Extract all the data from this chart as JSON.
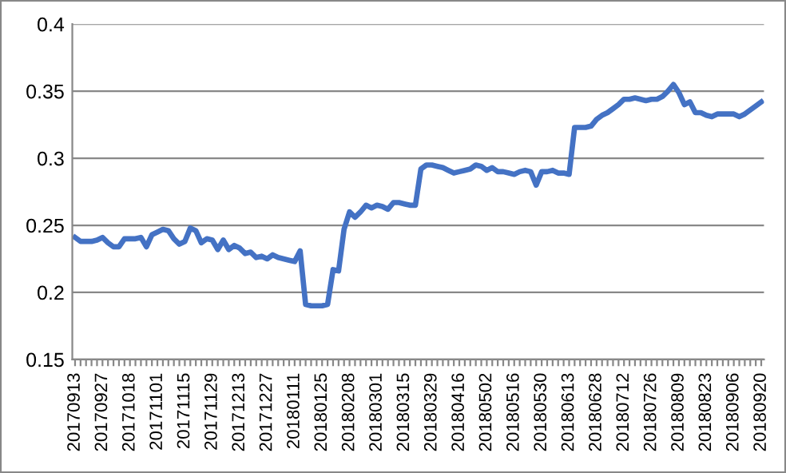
{
  "chart_data": {
    "type": "line",
    "categories": [
      "20170913",
      null,
      null,
      null,
      null,
      "20170927",
      null,
      null,
      null,
      null,
      "20171018",
      null,
      null,
      null,
      null,
      "20171101",
      null,
      null,
      null,
      null,
      "20171115",
      null,
      null,
      null,
      null,
      "20171129",
      null,
      null,
      null,
      null,
      "20171213",
      null,
      null,
      null,
      null,
      "20171227",
      null,
      null,
      null,
      null,
      "20180111",
      null,
      null,
      null,
      null,
      "20180125",
      null,
      null,
      null,
      null,
      "20180208",
      null,
      null,
      null,
      null,
      "20180301",
      null,
      null,
      null,
      null,
      "20180315",
      null,
      null,
      null,
      null,
      "20180329",
      null,
      null,
      null,
      null,
      "20180416",
      null,
      null,
      null,
      null,
      "20180502",
      null,
      null,
      null,
      null,
      "20180516",
      null,
      null,
      null,
      null,
      "20180530",
      null,
      null,
      null,
      null,
      "20180613",
      null,
      null,
      null,
      null,
      "20180628",
      null,
      null,
      null,
      null,
      "20180712",
      null,
      null,
      null,
      null,
      "20180726",
      null,
      null,
      null,
      null,
      "20180809",
      null,
      null,
      null,
      null,
      "20180823",
      null,
      null,
      null,
      null,
      "20180906",
      null,
      null,
      null,
      null,
      "20180920"
    ],
    "series": [
      {
        "color": "#4472c4",
        "values": [
          0.241,
          0.238,
          0.238,
          0.238,
          0.239,
          0.241,
          0.237,
          0.234,
          0.234,
          0.24,
          0.24,
          0.24,
          0.241,
          0.234,
          0.243,
          0.245,
          0.247,
          0.246,
          0.24,
          0.236,
          0.238,
          0.248,
          0.246,
          0.237,
          0.24,
          0.239,
          0.232,
          0.239,
          0.232,
          0.235,
          0.233,
          0.229,
          0.23,
          0.226,
          0.227,
          0.225,
          0.228,
          0.226,
          0.225,
          0.224,
          0.223,
          0.231,
          0.191,
          0.19,
          0.19,
          0.19,
          0.191,
          0.217,
          0.216,
          0.247,
          0.26,
          0.256,
          0.26,
          0.265,
          0.263,
          0.265,
          0.264,
          0.262,
          0.267,
          0.267,
          0.266,
          0.265,
          0.265,
          0.292,
          0.295,
          0.295,
          0.294,
          0.293,
          0.291,
          0.289,
          0.29,
          0.291,
          0.292,
          0.295,
          0.294,
          0.291,
          0.293,
          0.29,
          0.29,
          0.289,
          0.288,
          0.29,
          0.291,
          0.29,
          0.28,
          0.29,
          0.29,
          0.291,
          0.289,
          0.289,
          0.288,
          0.323,
          0.323,
          0.323,
          0.324,
          0.329,
          0.332,
          0.334,
          0.337,
          0.34,
          0.344,
          0.344,
          0.345,
          0.344,
          0.343,
          0.344,
          0.344,
          0.346,
          0.35,
          0.355,
          0.349,
          0.34,
          0.342,
          0.334,
          0.334,
          0.332,
          0.331,
          0.333,
          0.333,
          0.333,
          0.333,
          0.331,
          0.333,
          0.336,
          0.339,
          0.342
        ]
      }
    ],
    "ylim": [
      0.15,
      0.4
    ],
    "yticks": [
      0.15,
      0.2,
      0.25,
      0.3,
      0.35,
      0.4
    ],
    "grid": "y",
    "legend": false,
    "marker": "none",
    "line_style": "solid"
  }
}
